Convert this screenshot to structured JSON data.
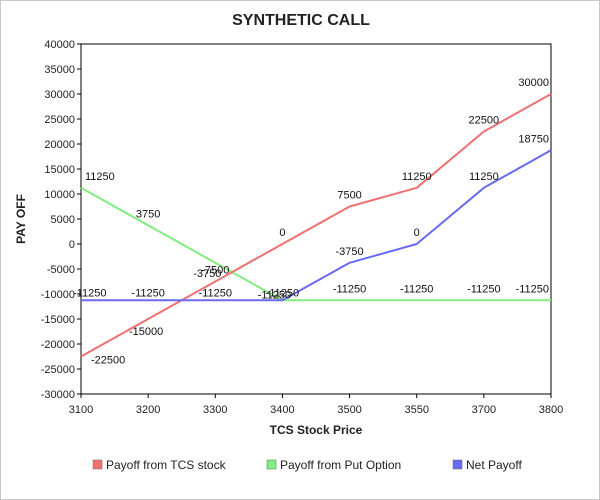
{
  "chart_data": {
    "type": "line",
    "title": "SYNTHETIC CALL",
    "xlabel": "TCS Stock Price",
    "ylabel": "PAY OFF",
    "categories": [
      "3100",
      "3200",
      "3300",
      "3400",
      "3500",
      "3550",
      "3700",
      "3800"
    ],
    "ylim": [
      -30000,
      40000
    ],
    "yticks": [
      40000,
      35000,
      30000,
      25000,
      20000,
      15000,
      10000,
      5000,
      0,
      -5000,
      -10000,
      -15000,
      -20000,
      -25000,
      -30000
    ],
    "grid": false,
    "legend_position": "bottom",
    "series": [
      {
        "name": "Payoff from TCS stock",
        "color": "#f07070",
        "values": [
          -22500,
          -15000,
          -7500,
          0,
          7500,
          11250,
          22500,
          30000
        ],
        "labels": [
          "-22500",
          "-15000",
          "-7500",
          "0",
          "7500",
          "11250",
          "22500",
          "30000"
        ]
      },
      {
        "name": "Payoff from Put Option",
        "color": "#80ee80",
        "values": [
          11250,
          3750,
          -3750,
          -11250,
          -11250,
          -11250,
          -11250,
          -11250
        ],
        "labels": [
          "11250",
          "3750",
          "-3750",
          "-11250",
          "-11250",
          "-11250",
          "-11250",
          "-11250"
        ]
      },
      {
        "name": "Net Payoff",
        "color": "#6a6af0",
        "values": [
          -11250,
          -11250,
          -11250,
          -11250,
          -3750,
          0,
          11250,
          18750
        ],
        "labels": [
          "-11250",
          "-11250",
          "-11250",
          "-11250",
          "-3750",
          "0",
          "11250",
          "18750"
        ]
      }
    ]
  }
}
